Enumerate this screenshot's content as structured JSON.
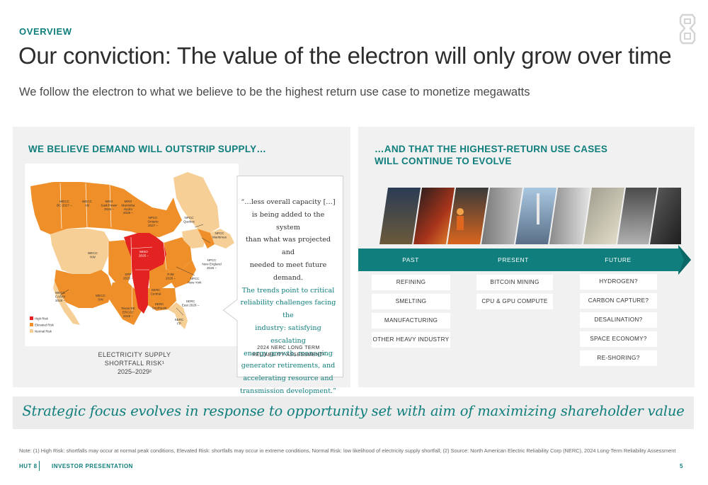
{
  "header": {
    "eyebrow": "OVERVIEW",
    "title": "Our conviction: The value of the electron will only grow over time",
    "subtitle": "We follow the electron to what we believe to be the highest return use case to monetize megawatts"
  },
  "left_panel": {
    "heading": "WE BELIEVE DEMAND WILL OUTSTRIP SUPPLY…",
    "map_caption": [
      "ELECTRICITY SUPPLY",
      "SHORTFALL RISK¹",
      "2025–2029²"
    ],
    "map_regions": [
      {
        "line1": "WECC",
        "line2": "BC 2027 –"
      },
      {
        "line1": "WECC",
        "line2": "AB"
      },
      {
        "line1": "MRO",
        "line2": "SaskPower",
        "line3": "2026 –"
      },
      {
        "line1": "MRO",
        "line2": "Manitoba",
        "line3": "Hydro",
        "line4": "2028 –"
      },
      {
        "line1": "NPCC",
        "line2": "Ontario",
        "line3": "2027 –"
      },
      {
        "line1": "NPCC",
        "line2": "Quebec"
      },
      {
        "line1": "NPCC",
        "line2": "Maritimes"
      },
      {
        "line1": "WECC",
        "line2": "NW"
      },
      {
        "line1": "MISO",
        "line2": "2025 –"
      },
      {
        "line1": "NPCC",
        "line2": "New England",
        "line3": "2026 –"
      },
      {
        "line1": "SPP",
        "line2": "2025 –"
      },
      {
        "line1": "PJM",
        "line2": "2026 –"
      },
      {
        "line1": "NPCC",
        "line2": "New York"
      },
      {
        "line1": "WECC",
        "line2": "CA/MX",
        "line3": "2028 –"
      },
      {
        "line1": "WECC",
        "line2": "SW"
      },
      {
        "line1": "SERC",
        "line2": "Central"
      },
      {
        "line1": "SERC",
        "line2": "East 2028 –"
      },
      {
        "line1": "Texas RE",
        "line2": "ERCOT",
        "line3": "2028 –"
      },
      {
        "line1": "SERC",
        "line2": "Southeast"
      },
      {
        "line1": "SERC",
        "line2": "FP"
      }
    ],
    "legend": [
      {
        "label": "High Risk",
        "color": "#e32222"
      },
      {
        "label": "Elevated Risk",
        "color": "#ef8f2a"
      },
      {
        "label": "Normal Risk",
        "color": "#f6cf97"
      }
    ],
    "quote": {
      "lines_dark": [
        "“…less overall capacity […]",
        "is being added to the system",
        "than what was projected and",
        "needed to meet future demand."
      ],
      "lines_teal": [
        "The trends point to critical",
        "reliability challenges facing the",
        "industry: satisfying escalating",
        "energy growth, managing",
        "generator retirements, and",
        "accelerating resource and",
        "transmission development.”"
      ],
      "source": [
        "2024 NERC LONG TERM",
        "RELIABILITY ASSESSMENT²"
      ]
    }
  },
  "right_panel": {
    "heading": [
      "…AND THAT THE HIGHEST-RETURN USE CASES",
      "WILL CONTINUE TO EVOLVE"
    ],
    "timeline": [
      "PAST",
      "PRESENT",
      "FUTURE"
    ],
    "past": [
      "REFINING",
      "SMELTING",
      "MANUFACTURING",
      "OTHER HEAVY INDUSTRY"
    ],
    "present": [
      "BITCOIN MINING",
      "CPU & GPU COMPUTE"
    ],
    "future": [
      "HYDROGEN?",
      "CARBON CAPTURE?",
      "DESALINATION?",
      "SPACE ECONOMY?",
      "RE-SHORING?"
    ],
    "photos": [
      "refinery-photo",
      "steel-mill-photo",
      "worker-photo",
      "turbine-photo",
      "solar-farm-photo",
      "data-center-photo",
      "mineral-photo",
      "rocket-launch-photo",
      "robotics-photo"
    ]
  },
  "banner": "Strategic focus evolves in response to opportunity set with aim of maximizing shareholder value",
  "note": "Note: (1) High Risk: shortfalls may occur at normal peak conditions, Elevated Risk: shortfalls may occur in extreme conditions, Normal Risk: low likelihood of electricity supply shortfall; (2) Source: North American Electric Reliability Corp (NERC), 2024 Long-Term Reliability Assessment",
  "footer": {
    "company": "HUT 8",
    "doc": "INVESTOR PRESENTATION",
    "page": "5"
  },
  "colors": {
    "teal": "#0f7e7c",
    "high": "#e32222",
    "elevated": "#ef8f2a",
    "normal": "#f6cf97"
  }
}
